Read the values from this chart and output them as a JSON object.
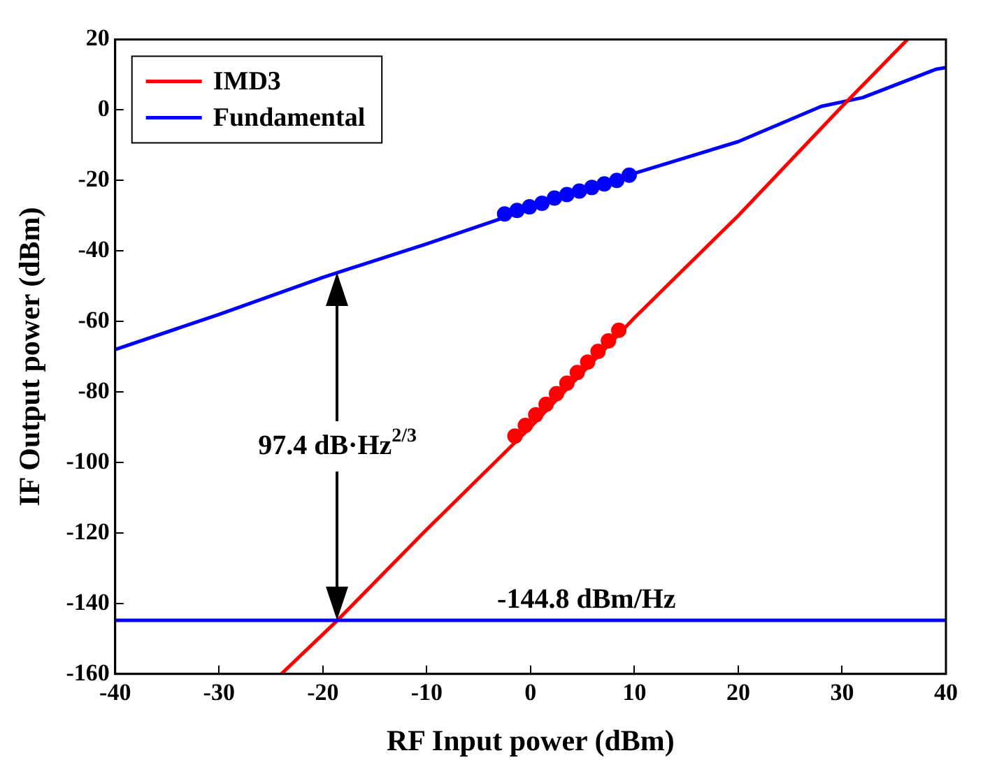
{
  "chart_data": {
    "type": "line",
    "xlabel": "RF Input power (dBm)",
    "ylabel": "IF Output power (dBm)",
    "xlim": [
      -40,
      40
    ],
    "xticks": [
      -40,
      -30,
      -20,
      -10,
      0,
      10,
      20,
      30,
      40
    ],
    "ylim": [
      -160,
      20
    ],
    "yticks": [
      -160,
      -140,
      -120,
      -100,
      -80,
      -60,
      -40,
      -20,
      0,
      20
    ],
    "grid": false,
    "legend": "top left",
    "marker": "none",
    "series": [
      {
        "name": "IMD3",
        "color": "#ff0000",
        "x": [
          -24,
          -18.6,
          -10,
          0,
          10,
          20,
          30,
          36.3
        ],
        "values": [
          -160,
          -144.8,
          -119,
          -90,
          -59,
          -30,
          1,
          20
        ]
      },
      {
        "name": "Fundamental",
        "color": "#0000ff",
        "x": [
          -40,
          -30,
          -20,
          -10,
          0,
          10,
          20,
          28,
          32,
          39,
          40
        ],
        "values": [
          -68,
          -58,
          -47.5,
          -38,
          -28,
          -18,
          -9,
          1,
          3.5,
          11.5,
          12
        ]
      },
      {
        "color": "#ff0000",
        "type": "scatter",
        "marker": "circle",
        "x": [
          -1.5,
          -0.5,
          0.5,
          1.5,
          2.5,
          3.5,
          4.5,
          5.5,
          6.5,
          7.5,
          8.5
        ],
        "values": [
          -92.5,
          -89.5,
          -86.5,
          -83.5,
          -80.5,
          -77.5,
          -74.5,
          -71.5,
          -68.5,
          -65.5,
          -62.5
        ]
      },
      {
        "color": "#0000ff",
        "type": "scatter",
        "marker": "circle",
        "x": [
          -2.5,
          -1.3,
          -0.1,
          1.1,
          2.3,
          3.5,
          4.7,
          5.9,
          7.1,
          8.3,
          9.5
        ],
        "values": [
          -29.5,
          -28.5,
          -27.5,
          -26.5,
          -25,
          -24,
          -23,
          -22,
          -21,
          -20,
          -18.5
        ]
      }
    ],
    "ref_lines": [
      {
        "axis": "y",
        "value": -144.8,
        "label": "-144.8 dBm/Hz",
        "color": "#0000ff"
      }
    ],
    "annotations": [
      "97.4 dB·Hz$^{2/3}$"
    ]
  }
}
